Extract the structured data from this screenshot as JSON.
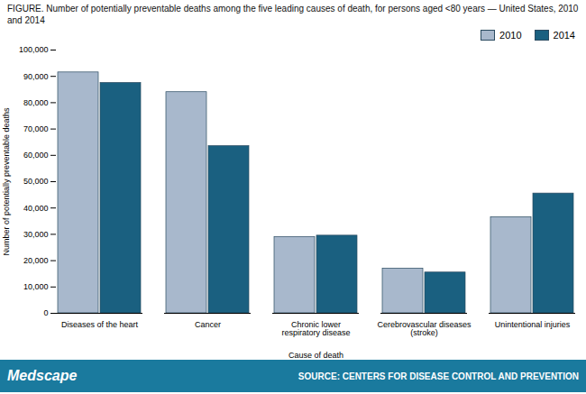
{
  "chart_data": {
    "type": "bar",
    "title": "FIGURE. Number of potentially preventable deaths among the five leading causes of death, for persons aged <80 years — United States, 2010 and 2014",
    "categories": [
      "Diseases of the heart",
      "Cancer",
      "Chronic lower\nrespiratory disease",
      "Cerebrovascular diseases\n(stroke)",
      "Unintentional injuries"
    ],
    "series": [
      {
        "name": "2010",
        "color": "#a8b8cc",
        "values": [
          91500,
          84000,
          29000,
          17000,
          36500
        ]
      },
      {
        "name": "2014",
        "color": "#1a6080",
        "values": [
          87500,
          63500,
          29500,
          15500,
          45500
        ]
      }
    ],
    "xlabel": "Cause of death",
    "ylabel": "Number of potentially preventable deaths",
    "ylim": [
      0,
      100000
    ],
    "yticks": [
      0,
      {
        "value": 10000,
        "label": "10,000"
      },
      {
        "value": 20000,
        "label": "20,000"
      },
      {
        "value": 30000,
        "label": "30,000"
      },
      {
        "value": 40000,
        "label": "40,000"
      },
      {
        "value": 50000,
        "label": "50,000"
      },
      {
        "value": 60000,
        "label": "60,000"
      },
      {
        "value": 70000,
        "label": "70,000"
      },
      {
        "value": 80000,
        "label": "80,000"
      },
      {
        "value": 90000,
        "label": "90,000"
      },
      {
        "value": 100000,
        "label": "100,000"
      }
    ],
    "grid": false,
    "legend": "upper right",
    "annotations": [
      "Medscape",
      "SOURCE: CENTERS FOR DISEASE CONTROL AND PREVENTION"
    ]
  }
}
